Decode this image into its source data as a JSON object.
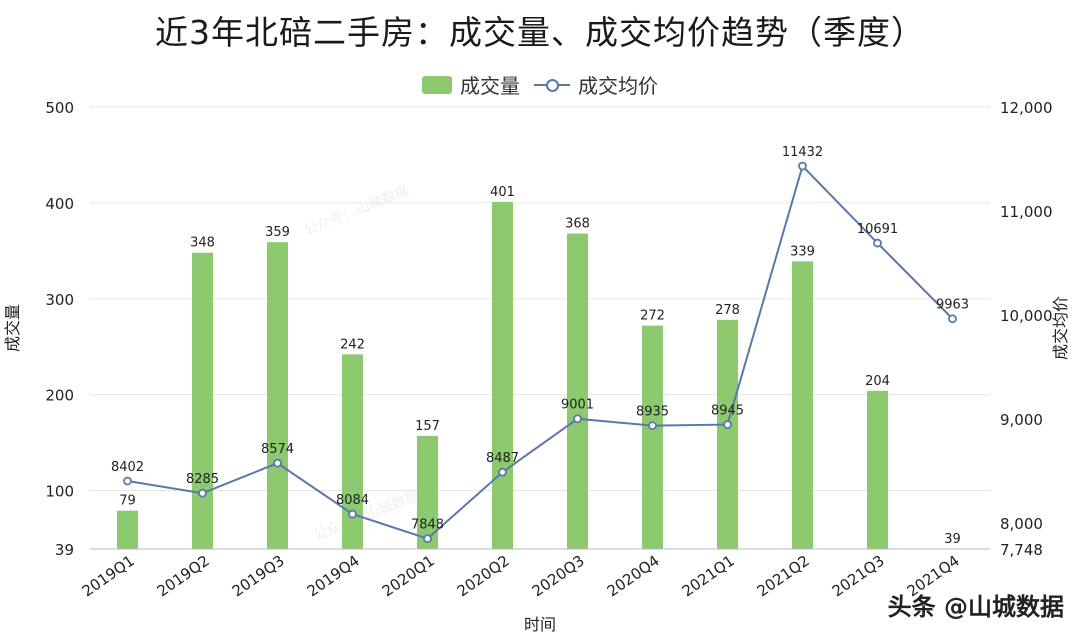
{
  "chart_data": {
    "type": "bar",
    "title": "近3年北碚二手房：成交量、成交均价趋势（季度）",
    "xlabel": "时间",
    "ylabel": "成交量",
    "y2label": "成交均价",
    "categories": [
      "2019Q1",
      "2019Q2",
      "2019Q3",
      "2019Q4",
      "2020Q1",
      "2020Q2",
      "2020Q3",
      "2020Q4",
      "2021Q1",
      "2021Q2",
      "2021Q3",
      "2021Q4"
    ],
    "series": [
      {
        "name": "成交量",
        "type": "bar",
        "axis": "left",
        "values": [
          79,
          348,
          359,
          242,
          157,
          401,
          368,
          272,
          278,
          339,
          204,
          39
        ]
      },
      {
        "name": "成交均价",
        "type": "line",
        "axis": "right",
        "values": [
          8402,
          8285,
          8574,
          8084,
          7848,
          8487,
          9001,
          8935,
          8945,
          11432,
          10691,
          9963
        ]
      }
    ],
    "ylim": [
      39,
      500
    ],
    "y_ticks": [
      "500",
      "400",
      "300",
      "200",
      "100",
      "39"
    ],
    "y2lim": [
      7748,
      12000
    ],
    "y2_ticks": [
      "12,000",
      "11,000",
      "10,000",
      "9,000",
      "8,000",
      "7,748"
    ],
    "grid": true,
    "legend": "top-center",
    "colors": {
      "bar": "#8cc96f",
      "line": "#5a78ab"
    }
  },
  "watermark": {
    "credit": "头条 @山城数据",
    "faint_text": "公众号：山城数据"
  }
}
